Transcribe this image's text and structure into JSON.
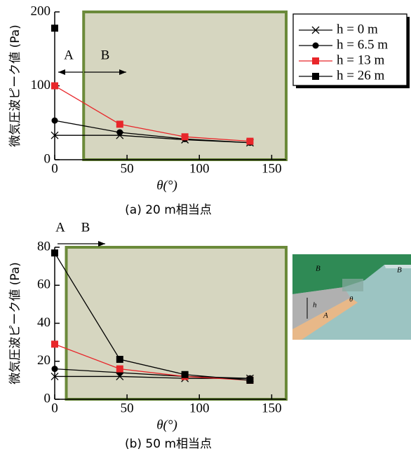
{
  "chart_data": [
    {
      "type": "line",
      "caption": "(a) 20 m相当点",
      "xlabel": "θ(°)",
      "ylabel": "微気圧波ピーク値 (Pa)",
      "x": [
        0,
        45,
        90,
        135
      ],
      "xlim": [
        0,
        160
      ],
      "ylim": [
        0,
        200
      ],
      "xticks": [
        0,
        50,
        100,
        150
      ],
      "yticks": [
        0,
        100,
        200
      ],
      "shaded_region": {
        "x": [
          20,
          160
        ],
        "fill": "#d6d6c0",
        "edge": "#6b8a3a"
      },
      "annotations": [
        "A",
        "B"
      ],
      "legend": "outside right",
      "series": [
        {
          "name": "h = 0 m",
          "color": "#000000",
          "marker": "x",
          "values": [
            33,
            33,
            27,
            23
          ]
        },
        {
          "name": "h = 6.5 m",
          "color": "#000000",
          "marker": "o",
          "values": [
            53,
            37,
            28,
            23
          ]
        },
        {
          "name": "h = 13 m",
          "color": "#e8262a",
          "marker": "s",
          "values": [
            100,
            48,
            31,
            25
          ]
        },
        {
          "name": "h = 26 m",
          "color": "#000000",
          "marker": "s",
          "values": [
            178,
            null,
            null,
            null
          ]
        }
      ]
    },
    {
      "type": "line",
      "caption": "(b) 50 m相当点",
      "xlabel": "θ(°)",
      "ylabel": "微気圧波ピーク値 (Pa)",
      "x": [
        0,
        45,
        90,
        135
      ],
      "xlim": [
        0,
        160
      ],
      "ylim": [
        0,
        80
      ],
      "xticks": [
        0,
        50,
        100,
        150
      ],
      "yticks": [
        0,
        20,
        40,
        60,
        80
      ],
      "shaded_region": {
        "x": [
          8,
          160
        ],
        "fill": "#d6d6c0",
        "edge": "#6b8a3a"
      },
      "annotations": [
        "A",
        "B"
      ],
      "series": [
        {
          "color": "#000000",
          "marker": "x",
          "values": [
            12,
            12,
            11,
            11
          ]
        },
        {
          "color": "#000000",
          "marker": "o",
          "values": [
            16,
            14,
            12,
            11
          ]
        },
        {
          "color": "#e8262a",
          "marker": "s",
          "values": [
            29,
            16,
            12,
            10
          ]
        },
        {
          "color": "#000000",
          "marker": "s",
          "values": [
            77,
            21,
            13,
            10
          ]
        }
      ]
    }
  ],
  "inset": {
    "labels": [
      "B",
      "B",
      "h",
      "A",
      "θ"
    ]
  }
}
